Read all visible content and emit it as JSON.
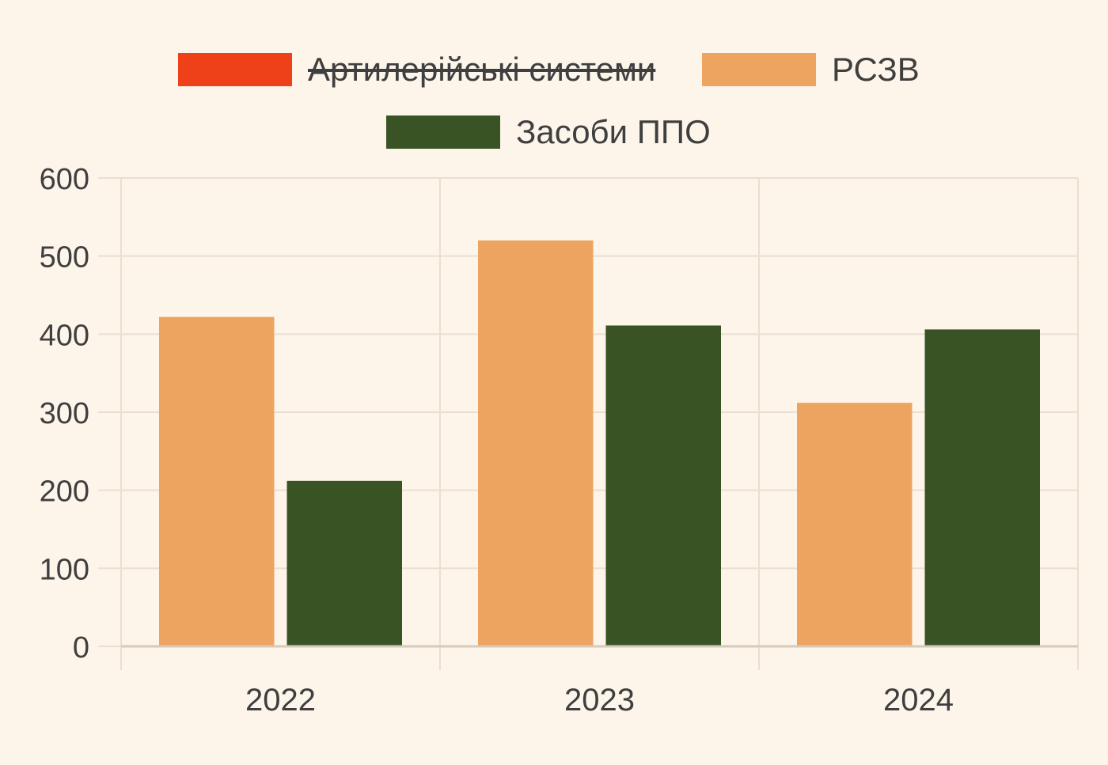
{
  "chart_data": {
    "type": "bar",
    "title": "",
    "xlabel": "",
    "ylabel": "",
    "categories": [
      "2022",
      "2023",
      "2024"
    ],
    "ylim": [
      0,
      600
    ],
    "yticks": [
      0,
      100,
      200,
      300,
      400,
      500,
      600
    ],
    "grid": true,
    "legend_position": "top-center",
    "series": [
      {
        "name": "Артилерійські системи",
        "color": "#ee4119",
        "hidden": true,
        "values": [
          null,
          null,
          null
        ]
      },
      {
        "name": "РСЗВ",
        "color": "#eda461",
        "hidden": false,
        "values": [
          422,
          520,
          312
        ]
      },
      {
        "name": "Засоби ППО",
        "color": "#3a5324",
        "hidden": false,
        "values": [
          212,
          411,
          406
        ]
      }
    ]
  },
  "colors": {
    "background": "#fdf5ea",
    "grid": "#eadfd0",
    "axis": "#d6cbbb",
    "text": "#3f3f3f"
  }
}
